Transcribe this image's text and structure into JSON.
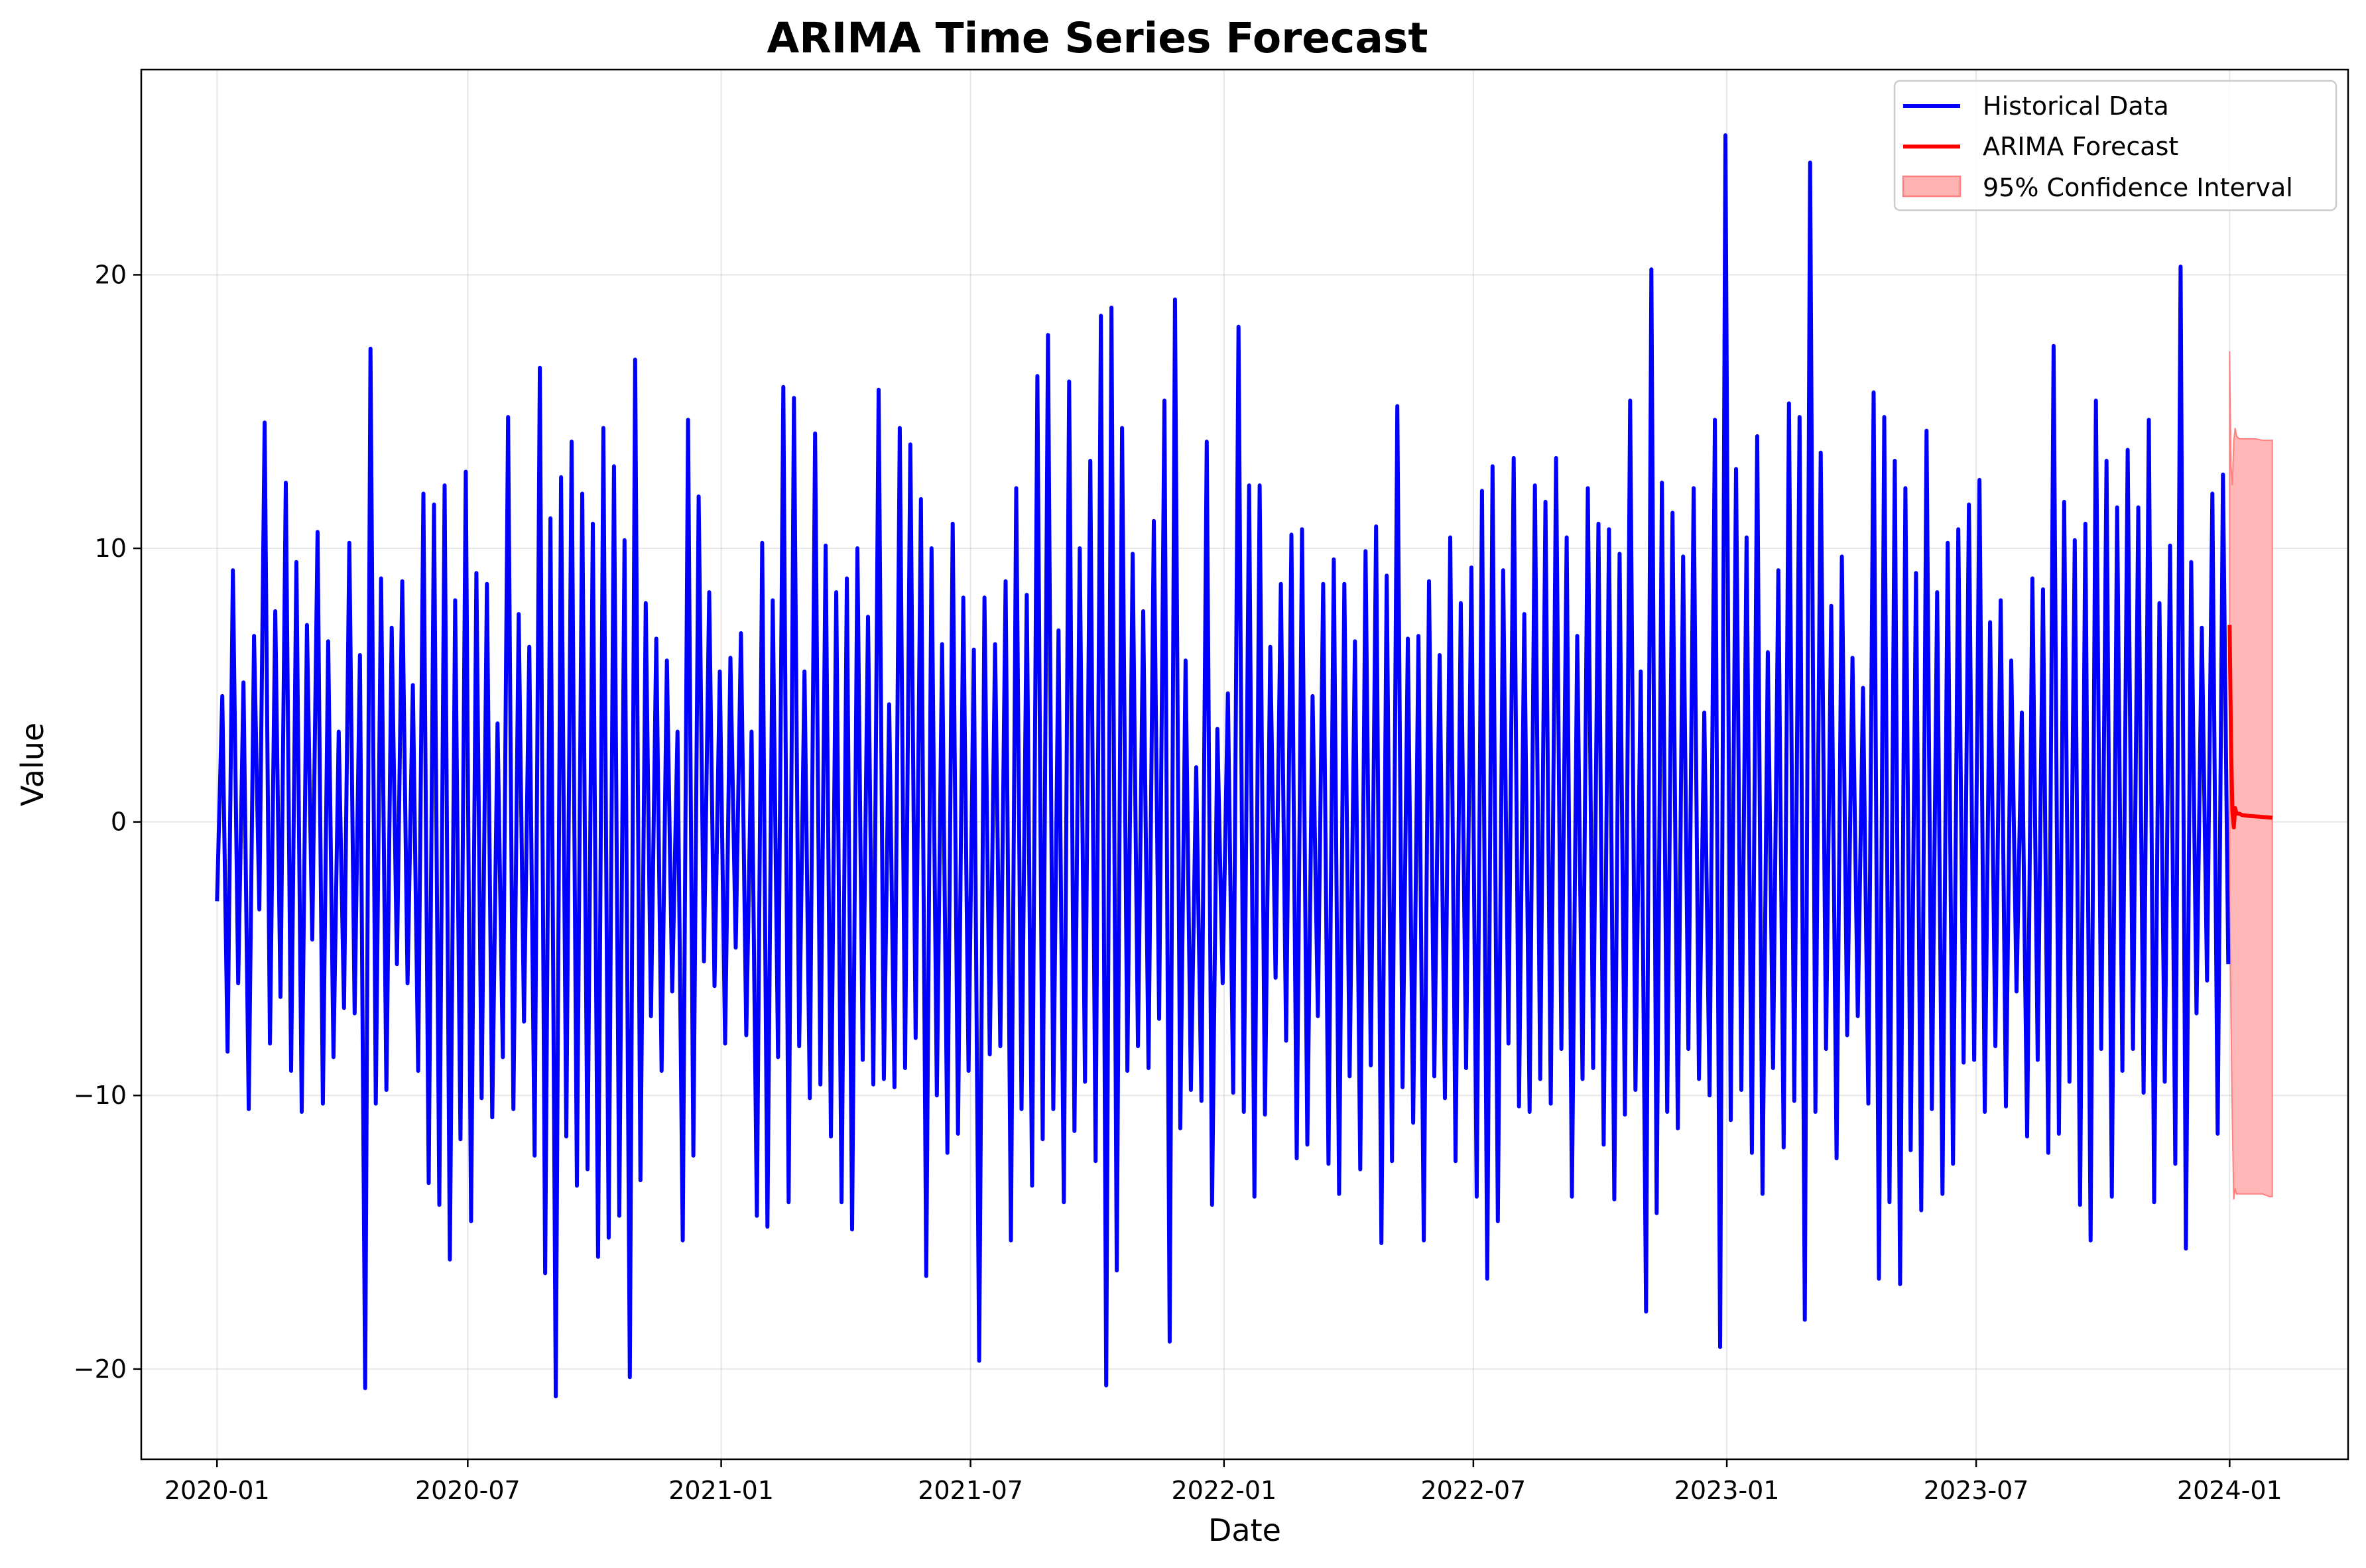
{
  "chart_data": {
    "type": "line",
    "title": "ARIMA Time Series Forecast",
    "xlabel": "Date",
    "ylabel": "Value",
    "xlim": [
      "2019-11-07",
      "2024-03-27"
    ],
    "ylim": [
      -23.3,
      27.5
    ],
    "x_ticks": [
      "2020-01",
      "2020-07",
      "2021-01",
      "2021-07",
      "2022-01",
      "2022-07",
      "2023-01",
      "2023-07",
      "2024-01"
    ],
    "y_ticks": [
      -20,
      -10,
      0,
      10,
      20
    ],
    "grid": true,
    "legend_position": "top-right",
    "colors": {
      "historical": "#0000ff",
      "forecast": "#ff0000",
      "ci_fill": "#ffb3b3",
      "ci_edge": "#ff8080"
    },
    "series": [
      {
        "name": "Historical Data",
        "kind": "line",
        "x_start": "2020-01-01",
        "x_end": "2023-12-31",
        "frequency": "daily",
        "sampled_values": [
          -2.9,
          4.6,
          -8.4,
          9.2,
          -5.9,
          5.1,
          -10.5,
          6.8,
          -3.2,
          14.6,
          -8.1,
          7.7,
          -6.4,
          12.4,
          -9.1,
          9.5,
          -10.6,
          7.2,
          -4.3,
          10.6,
          -10.3,
          6.6,
          -8.6,
          3.3,
          -6.8,
          10.2,
          -7.0,
          6.1,
          -20.7,
          17.3,
          -10.3,
          8.9,
          -9.8,
          7.1,
          -5.2,
          8.8,
          -5.9,
          5.0,
          -9.1,
          12.0,
          -13.2,
          11.6,
          -14.0,
          12.3,
          -16.0,
          8.1,
          -11.6,
          12.8,
          -14.6,
          9.1,
          -10.1,
          8.7,
          -10.8,
          3.6,
          -8.6,
          14.8,
          -10.5,
          7.6,
          -7.3,
          6.4,
          -12.2,
          16.6,
          -16.5,
          11.1,
          -21.0,
          12.6,
          -11.5,
          13.9,
          -13.3,
          12.0,
          -12.7,
          10.9,
          -15.9,
          14.4,
          -15.2,
          13.0,
          -14.4,
          10.3,
          -20.3,
          16.9,
          -13.1,
          8.0,
          -7.1,
          6.7,
          -9.1,
          5.9,
          -6.2,
          3.3,
          -15.3,
          14.7,
          -12.2,
          11.9,
          -5.1,
          8.4,
          -6.0,
          5.5,
          -8.1,
          6.0,
          -4.6,
          6.9,
          -7.8,
          3.3,
          -14.4,
          10.2,
          -14.8,
          8.1,
          -8.6,
          15.9,
          -13.9,
          15.5,
          -8.2,
          5.5,
          -10.1,
          14.2,
          -9.6,
          10.1,
          -11.5,
          8.4,
          -13.9,
          8.9,
          -14.9,
          10.0,
          -8.7,
          7.5,
          -9.6,
          15.8,
          -9.4,
          4.3,
          -9.7,
          14.4,
          -9.0,
          13.8,
          -7.9,
          11.8,
          -16.6,
          10.0,
          -10.0,
          6.5,
          -12.1,
          10.9,
          -11.4,
          8.2,
          -9.1,
          6.3,
          -19.7,
          8.2,
          -8.5,
          6.5,
          -8.2,
          8.8,
          -15.3,
          12.2,
          -10.5,
          8.3,
          -13.3,
          16.3,
          -11.6,
          17.8,
          -10.5,
          7.0,
          -13.9,
          16.1,
          -11.3,
          10.0,
          -9.5,
          13.2,
          -12.4,
          18.5,
          -20.6,
          18.8,
          -16.4,
          14.4,
          -9.1,
          9.8,
          -8.2,
          7.7,
          -9.0,
          11.0,
          -7.2,
          15.4,
          -19.0,
          19.1,
          -11.2,
          5.9,
          -9.8,
          2.0,
          -10.2,
          13.9,
          -14.0,
          3.4,
          -5.9,
          4.7,
          -9.9,
          18.1,
          -10.6,
          12.3,
          -13.7,
          12.3,
          -10.7,
          6.4,
          -5.7,
          8.7,
          -8.0,
          10.5,
          -12.3,
          10.7,
          -11.8,
          4.6,
          -7.1,
          8.7,
          -12.5,
          9.6,
          -13.6,
          8.7,
          -9.3,
          6.6,
          -12.7,
          9.9,
          -8.9,
          10.8,
          -15.4,
          9.0,
          -12.4,
          15.2,
          -9.7,
          6.7,
          -11.0,
          6.8,
          -15.3,
          8.8,
          -9.3,
          6.1,
          -10.1,
          10.4,
          -12.4,
          8.0,
          -9.0,
          9.3,
          -13.7,
          12.1,
          -16.7,
          13.0,
          -14.6,
          9.2,
          -8.1,
          13.3,
          -10.4,
          7.6,
          -10.6,
          12.3,
          -9.4,
          11.7,
          -10.3,
          13.3,
          -8.3,
          10.4,
          -13.7,
          6.8,
          -9.4,
          12.2,
          -9.0,
          10.9,
          -11.8,
          10.7,
          -13.8,
          9.8,
          -10.7,
          15.4,
          -9.8,
          5.5,
          -17.9,
          20.2,
          -14.3,
          12.4,
          -10.6,
          11.3,
          -11.2,
          9.7,
          -8.3,
          12.2,
          -9.4,
          4.0,
          -10.0,
          14.7,
          -19.2,
          25.1,
          -10.9,
          12.9,
          -9.8,
          10.4,
          -12.1,
          14.1,
          -13.6,
          6.2,
          -9.0,
          9.2,
          -11.9,
          15.3,
          -10.2,
          14.8,
          -18.2,
          24.1,
          -10.6,
          13.5,
          -8.3,
          7.9,
          -12.3,
          9.7,
          -7.8,
          6.0,
          -7.1,
          4.9,
          -10.3,
          15.7,
          -16.7,
          14.8,
          -13.9,
          13.2,
          -16.9,
          12.2,
          -12.0,
          9.1,
          -14.2,
          14.3,
          -10.5,
          8.4,
          -13.6,
          10.2,
          -12.5,
          10.7,
          -8.8,
          11.6,
          -8.7,
          12.5,
          -10.6,
          7.3,
          -8.2,
          8.1,
          -10.4,
          5.9,
          -6.2,
          4.0,
          -11.5,
          8.9,
          -8.7,
          8.5,
          -12.1,
          17.4,
          -11.4,
          11.7,
          -9.5,
          10.3,
          -14.0,
          10.9,
          -15.3,
          15.4,
          -8.3,
          13.2,
          -13.7,
          11.5,
          -9.1,
          13.6,
          -8.3,
          11.5,
          -9.9,
          14.7,
          -13.9,
          8.0,
          -9.5,
          10.1,
          -12.5,
          20.3,
          -15.6,
          9.5,
          -7.0,
          7.1,
          -5.8,
          12.0,
          -11.4,
          12.7,
          -5.2
        ]
      },
      {
        "name": "ARIMA Forecast",
        "kind": "line",
        "x": [
          "2024-01-01",
          "2024-01-02",
          "2024-01-03",
          "2024-01-04",
          "2024-01-05",
          "2024-01-06",
          "2024-01-08",
          "2024-01-10",
          "2024-01-15",
          "2024-01-20",
          "2024-01-25",
          "2024-01-30",
          "2024-02-01"
        ],
        "values": [
          7.2,
          3.0,
          0.4,
          -0.2,
          0.5,
          0.3,
          0.3,
          0.25,
          0.22,
          0.2,
          0.18,
          0.16,
          0.15
        ]
      },
      {
        "name": "95% Confidence Interval",
        "kind": "band",
        "x": [
          "2024-01-01",
          "2024-01-02",
          "2024-01-03",
          "2024-01-04",
          "2024-01-05",
          "2024-01-06",
          "2024-01-08",
          "2024-01-10",
          "2024-01-15",
          "2024-01-20",
          "2024-01-25",
          "2024-01-30",
          "2024-02-01"
        ],
        "lower": [
          -2.8,
          -7.0,
          -11.0,
          -13.8,
          -13.4,
          -13.6,
          -13.6,
          -13.6,
          -13.6,
          -13.6,
          -13.6,
          -13.7,
          -13.7
        ],
        "upper": [
          17.2,
          13.0,
          12.3,
          13.9,
          14.4,
          14.1,
          14.0,
          14.0,
          14.0,
          14.0,
          13.95,
          13.95,
          13.95
        ]
      }
    ]
  }
}
